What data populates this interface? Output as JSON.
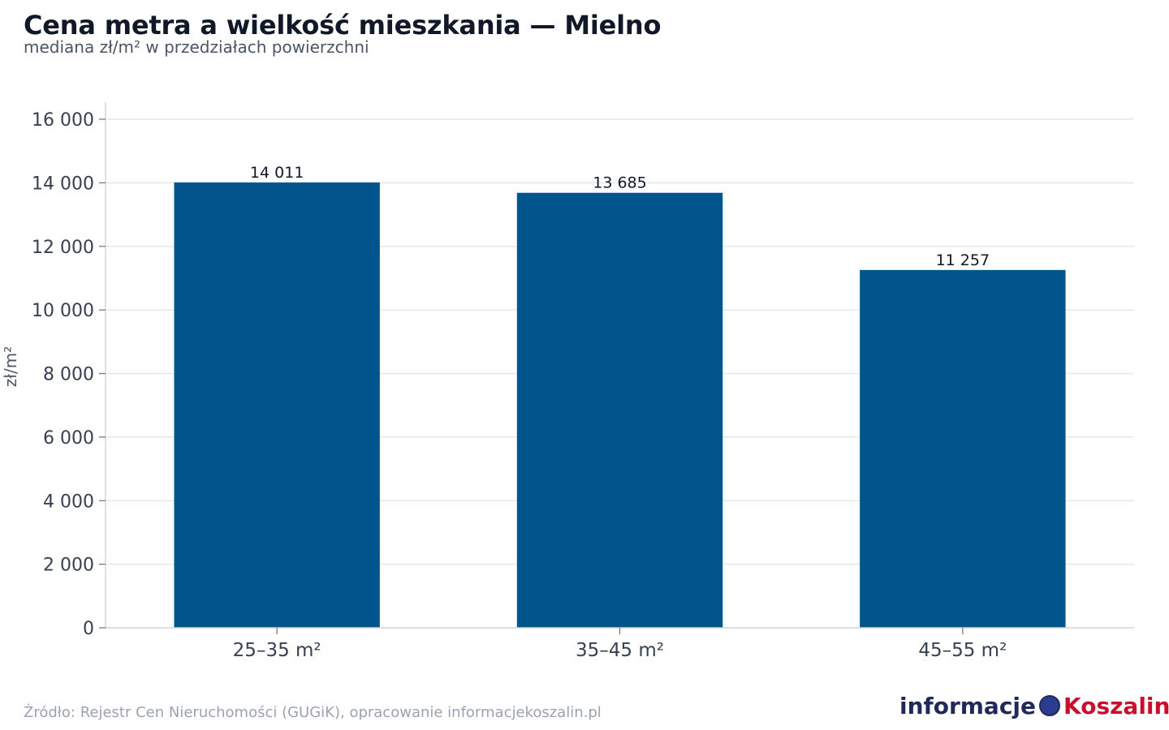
{
  "title": "Cena metra a wielkość mieszkania — Mielno",
  "subtitle": "mediana zł/m² w przedziałach powierzchni",
  "source": "Źródło: Rejestr Cen Nieruchomości (GUGiK), opracowanie informacjekoszalin.pl",
  "logo": {
    "left": "informacje",
    "right": "Koszalin"
  },
  "colors": {
    "bar": "#00558c",
    "grid": "#e5e7eb",
    "axis": "#d1d5db",
    "text": "#111827"
  },
  "chart_data": {
    "type": "bar",
    "categories": [
      "25–35 m²",
      "35–45 m²",
      "45–55 m²"
    ],
    "values": [
      14011,
      13685,
      11257
    ],
    "data_labels": [
      "14 011",
      "13 685",
      "11 257"
    ],
    "title": "Cena metra a wielkość mieszkania — Mielno",
    "subtitle": "mediana zł/m² w przedziałach powierzchni",
    "xlabel": "",
    "ylabel": "zł/m²",
    "ylim": [
      0,
      16000
    ],
    "yticks": [
      0,
      2000,
      4000,
      6000,
      8000,
      10000,
      12000,
      14000,
      16000
    ],
    "ytick_labels": [
      "0",
      "2 000",
      "4 000",
      "6 000",
      "8 000",
      "10 000",
      "12 000",
      "14 000",
      "16 000"
    ],
    "grid": true,
    "legend": "none"
  }
}
